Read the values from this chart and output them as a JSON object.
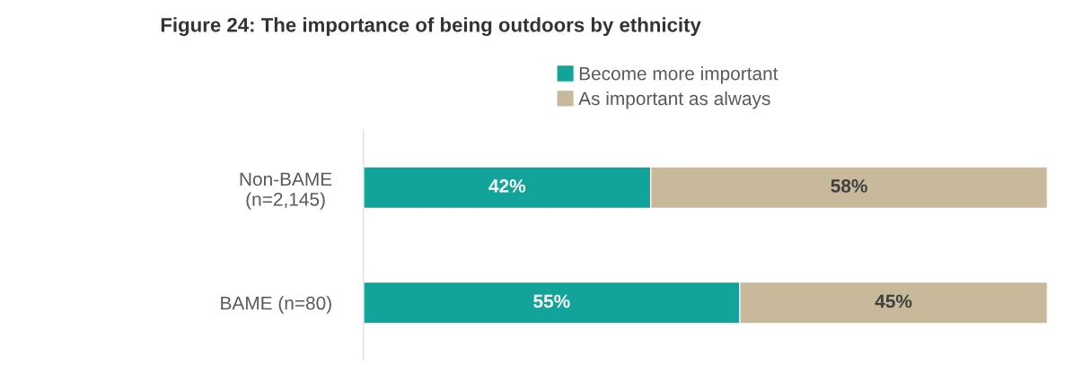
{
  "chart_data": {
    "type": "bar",
    "orientation": "horizontal",
    "stacked": true,
    "title": "Figure 24: The importance of being outdoors by ethnicity",
    "categories": [
      "Non-BAME\n(n=2,145)",
      "BAME (n=80)"
    ],
    "series": [
      {
        "name": "Become more important",
        "color": "#12a39a",
        "values": [
          42,
          55
        ],
        "value_labels": [
          "42%",
          "55%"
        ]
      },
      {
        "name": "As important as always",
        "color": "#c9b99b",
        "values": [
          58,
          45
        ],
        "value_labels": [
          "58%",
          "45%"
        ]
      }
    ],
    "legend": "top",
    "grid": false
  }
}
